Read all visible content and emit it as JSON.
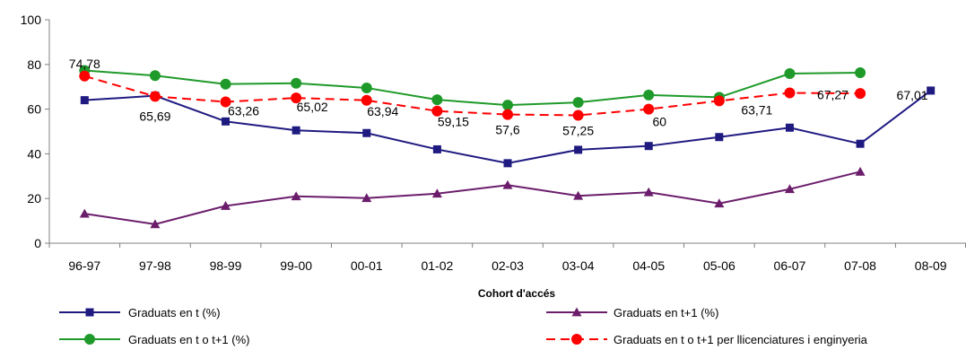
{
  "chart_data": {
    "type": "line",
    "xlabel": "Cohort d'accés",
    "ylabel": "",
    "ylim": [
      0,
      100
    ],
    "yticks": [
      0,
      20,
      40,
      60,
      80,
      100
    ],
    "grid": false,
    "legend_position": "bottom",
    "categories": [
      "96-97",
      "97-98",
      "98-99",
      "99-00",
      "00-01",
      "01-02",
      "02-03",
      "03-04",
      "04-05",
      "05-06",
      "06-07",
      "07-08",
      "08-09"
    ],
    "series": [
      {
        "name": "Graduats en t (%)",
        "color": "#1f1a80",
        "marker": "square",
        "dash": false,
        "values": [
          64,
          66,
          54.5,
          50.5,
          49.3,
          42,
          35.8,
          41.8,
          43.5,
          47.5,
          51.7,
          44.5,
          68.3
        ]
      },
      {
        "name": "Graduats en t+1 (%)",
        "color": "#6b1d6b",
        "marker": "triangle",
        "dash": false,
        "values": [
          13.2,
          8.5,
          16.7,
          21,
          20.2,
          22.2,
          26,
          21.2,
          22.8,
          17.8,
          24.2,
          32,
          null
        ]
      },
      {
        "name": "Graduats en t o t+1 (%)",
        "color": "#1f9a2a",
        "marker": "circle",
        "dash": false,
        "values": [
          77.3,
          75,
          71.2,
          71.6,
          69.5,
          64.2,
          61.8,
          63,
          66.3,
          65.3,
          75.9,
          76.3,
          null
        ]
      },
      {
        "name": "Graduats en t o t+1 per llicenciatures i enginyeria",
        "color": "#ff0000",
        "marker": "circle",
        "dash": true,
        "values": [
          74.78,
          65.69,
          63.26,
          65.02,
          63.94,
          59.15,
          57.6,
          57.25,
          60,
          63.71,
          67.27,
          67.01,
          null
        ]
      }
    ],
    "data_labels": {
      "series": "Graduats en t o t+1 per llicenciatures i enginyeria",
      "texts": [
        "74,78",
        "65,69",
        "63,26",
        "65,02",
        "63,94",
        "59,15",
        "57,6",
        "57,25",
        "60",
        "63,71",
        "67,27",
        "67,01"
      ]
    }
  }
}
